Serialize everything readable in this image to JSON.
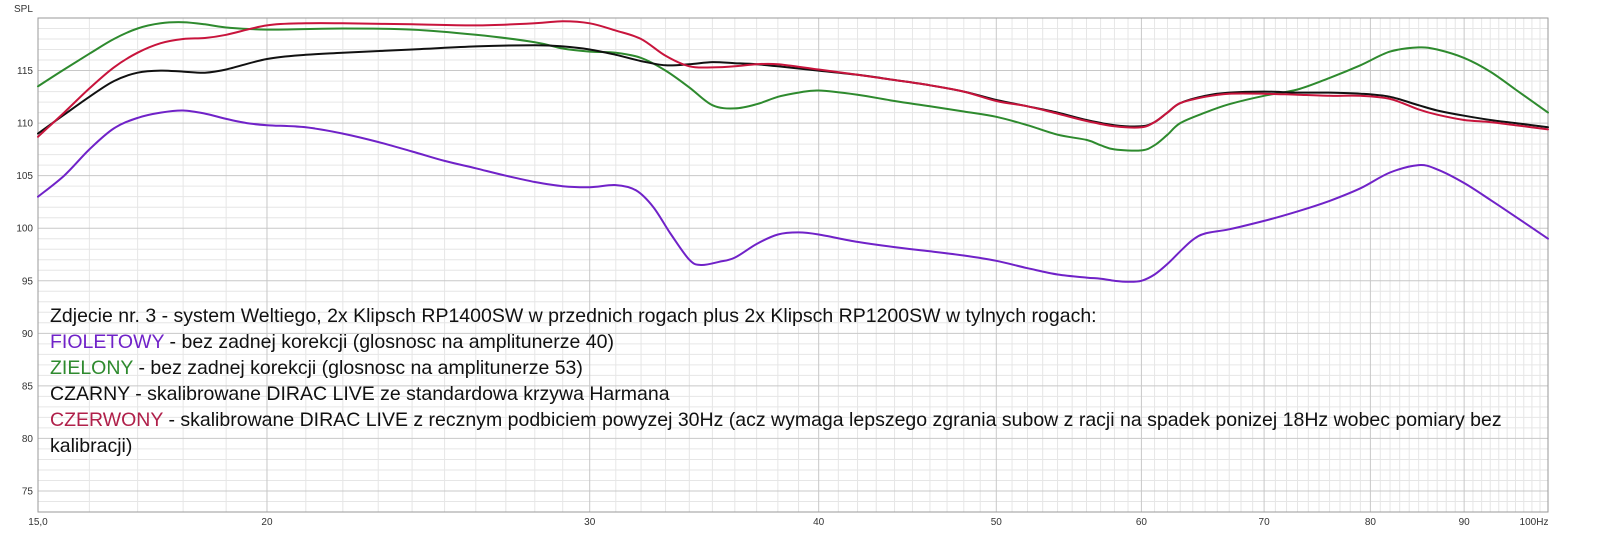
{
  "chart_data": {
    "type": "line",
    "ylabel": "SPL",
    "xlabel": "",
    "x_unit_label": "Hz",
    "x_scale": "log",
    "xlim": [
      15,
      100
    ],
    "ylim": [
      73,
      120
    ],
    "grid": true,
    "x_ticks": [
      {
        "value": 15,
        "label": "15,0"
      },
      {
        "value": 20,
        "label": "20"
      },
      {
        "value": 30,
        "label": "30"
      },
      {
        "value": 40,
        "label": "40"
      },
      {
        "value": 50,
        "label": "50"
      },
      {
        "value": 60,
        "label": "60"
      },
      {
        "value": 70,
        "label": "70"
      },
      {
        "value": 80,
        "label": "80"
      },
      {
        "value": 90,
        "label": "90"
      },
      {
        "value": 100,
        "label": "100"
      }
    ],
    "y_ticks": [
      {
        "value": 75,
        "label": "75"
      },
      {
        "value": 80,
        "label": "80"
      },
      {
        "value": 85,
        "label": "85"
      },
      {
        "value": 90,
        "label": "90"
      },
      {
        "value": 95,
        "label": "95"
      },
      {
        "value": 100,
        "label": "100"
      },
      {
        "value": 105,
        "label": "105"
      },
      {
        "value": 110,
        "label": "110"
      },
      {
        "value": 115,
        "label": "115"
      }
    ],
    "series": [
      {
        "key": "fioletowy",
        "color": "#7022c8",
        "points": [
          [
            15,
            103
          ],
          [
            15.5,
            105
          ],
          [
            16,
            107.5
          ],
          [
            16.5,
            109.5
          ],
          [
            17,
            110.5
          ],
          [
            17.5,
            111
          ],
          [
            18,
            111.2
          ],
          [
            18.5,
            110.9
          ],
          [
            19,
            110.4
          ],
          [
            19.5,
            110
          ],
          [
            20,
            109.8
          ],
          [
            21,
            109.6
          ],
          [
            22,
            109
          ],
          [
            23,
            108.2
          ],
          [
            24,
            107.3
          ],
          [
            25,
            106.4
          ],
          [
            26,
            105.7
          ],
          [
            27,
            105
          ],
          [
            28,
            104.4
          ],
          [
            29,
            104
          ],
          [
            30,
            103.9
          ],
          [
            31,
            104.1
          ],
          [
            31.8,
            103.6
          ],
          [
            32.5,
            102
          ],
          [
            33.2,
            99.5
          ],
          [
            34,
            97
          ],
          [
            34.5,
            96.5
          ],
          [
            35.3,
            96.8
          ],
          [
            36,
            97.2
          ],
          [
            37,
            98.5
          ],
          [
            38,
            99.4
          ],
          [
            39,
            99.6
          ],
          [
            40,
            99.4
          ],
          [
            42,
            98.7
          ],
          [
            44,
            98.2
          ],
          [
            46,
            97.8
          ],
          [
            48,
            97.4
          ],
          [
            50,
            96.9
          ],
          [
            52,
            96.2
          ],
          [
            54,
            95.6
          ],
          [
            56,
            95.3
          ],
          [
            57,
            95.2
          ],
          [
            58,
            95
          ],
          [
            59,
            94.9
          ],
          [
            60,
            95
          ],
          [
            61,
            95.6
          ],
          [
            62,
            96.6
          ],
          [
            63,
            97.8
          ],
          [
            64,
            98.9
          ],
          [
            65,
            99.5
          ],
          [
            67,
            99.9
          ],
          [
            70,
            100.7
          ],
          [
            73,
            101.6
          ],
          [
            76,
            102.6
          ],
          [
            79,
            103.8
          ],
          [
            82,
            105.3
          ],
          [
            85,
            106
          ],
          [
            87,
            105.6
          ],
          [
            90,
            104.3
          ],
          [
            93,
            102.7
          ],
          [
            96,
            101.1
          ],
          [
            100,
            99
          ]
        ]
      },
      {
        "key": "zielony",
        "color": "#2e8a2e",
        "points": [
          [
            15,
            113.5
          ],
          [
            15.5,
            115.1
          ],
          [
            16,
            116.6
          ],
          [
            16.5,
            118
          ],
          [
            17,
            119
          ],
          [
            17.5,
            119.5
          ],
          [
            18,
            119.6
          ],
          [
            18.5,
            119.4
          ],
          [
            19,
            119.1
          ],
          [
            20,
            118.9
          ],
          [
            22,
            119
          ],
          [
            24,
            118.9
          ],
          [
            26,
            118.4
          ],
          [
            28,
            117.7
          ],
          [
            29,
            117.1
          ],
          [
            30,
            116.8
          ],
          [
            31,
            116.7
          ],
          [
            32,
            116.2
          ],
          [
            33,
            115
          ],
          [
            34,
            113.4
          ],
          [
            35,
            111.7
          ],
          [
            36,
            111.4
          ],
          [
            37,
            111.8
          ],
          [
            38,
            112.5
          ],
          [
            39,
            112.9
          ],
          [
            40,
            113.1
          ],
          [
            42,
            112.7
          ],
          [
            44,
            112.1
          ],
          [
            46,
            111.6
          ],
          [
            48,
            111.1
          ],
          [
            50,
            110.6
          ],
          [
            52,
            109.8
          ],
          [
            54,
            108.9
          ],
          [
            56,
            108.4
          ],
          [
            57,
            107.9
          ],
          [
            58,
            107.5
          ],
          [
            60,
            107.4
          ],
          [
            61,
            107.9
          ],
          [
            62,
            108.9
          ],
          [
            63,
            110
          ],
          [
            65,
            111
          ],
          [
            67,
            111.8
          ],
          [
            70,
            112.6
          ],
          [
            73,
            113.2
          ],
          [
            76,
            114.3
          ],
          [
            79,
            115.5
          ],
          [
            82,
            116.8
          ],
          [
            85,
            117.2
          ],
          [
            87,
            117
          ],
          [
            90,
            116.2
          ],
          [
            93,
            114.9
          ],
          [
            96,
            113.2
          ],
          [
            100,
            111
          ]
        ]
      },
      {
        "key": "czarny",
        "color": "#111111",
        "points": [
          [
            15,
            109
          ],
          [
            15.5,
            110.8
          ],
          [
            16,
            112.5
          ],
          [
            16.5,
            114
          ],
          [
            17,
            114.8
          ],
          [
            17.5,
            115
          ],
          [
            18,
            114.9
          ],
          [
            18.5,
            114.8
          ],
          [
            19,
            115.1
          ],
          [
            20,
            116.1
          ],
          [
            21,
            116.5
          ],
          [
            22,
            116.7
          ],
          [
            24,
            117
          ],
          [
            26,
            117.3
          ],
          [
            28,
            117.4
          ],
          [
            29,
            117.3
          ],
          [
            30,
            117
          ],
          [
            31,
            116.5
          ],
          [
            32,
            115.9
          ],
          [
            33,
            115.5
          ],
          [
            34,
            115.6
          ],
          [
            35,
            115.8
          ],
          [
            36,
            115.7
          ],
          [
            37,
            115.6
          ],
          [
            38,
            115.4
          ],
          [
            40,
            115
          ],
          [
            42,
            114.6
          ],
          [
            44,
            114.1
          ],
          [
            46,
            113.6
          ],
          [
            48,
            113
          ],
          [
            50,
            112.2
          ],
          [
            52,
            111.6
          ],
          [
            54,
            111
          ],
          [
            56,
            110.3
          ],
          [
            58,
            109.8
          ],
          [
            60,
            109.7
          ],
          [
            61,
            110.1
          ],
          [
            62,
            111
          ],
          [
            63,
            111.9
          ],
          [
            65,
            112.6
          ],
          [
            67,
            112.9
          ],
          [
            70,
            113
          ],
          [
            73,
            112.9
          ],
          [
            76,
            112.9
          ],
          [
            79,
            112.8
          ],
          [
            82,
            112.5
          ],
          [
            85,
            111.7
          ],
          [
            87,
            111.2
          ],
          [
            90,
            110.7
          ],
          [
            93,
            110.3
          ],
          [
            96,
            110
          ],
          [
            100,
            109.6
          ]
        ]
      },
      {
        "key": "czerwony",
        "color": "#c8143c",
        "points": [
          [
            15,
            108.7
          ],
          [
            15.5,
            111
          ],
          [
            16,
            113.3
          ],
          [
            16.5,
            115.3
          ],
          [
            17,
            116.7
          ],
          [
            17.5,
            117.6
          ],
          [
            18,
            118
          ],
          [
            18.5,
            118.1
          ],
          [
            19,
            118.4
          ],
          [
            20,
            119.3
          ],
          [
            21,
            119.5
          ],
          [
            22,
            119.5
          ],
          [
            24,
            119.4
          ],
          [
            26,
            119.3
          ],
          [
            28,
            119.5
          ],
          [
            29,
            119.7
          ],
          [
            30,
            119.5
          ],
          [
            31,
            118.8
          ],
          [
            32,
            118
          ],
          [
            33,
            116.4
          ],
          [
            34,
            115.4
          ],
          [
            35,
            115.3
          ],
          [
            36,
            115.4
          ],
          [
            37,
            115.6
          ],
          [
            38,
            115.6
          ],
          [
            40,
            115.1
          ],
          [
            42,
            114.6
          ],
          [
            44,
            114.1
          ],
          [
            46,
            113.6
          ],
          [
            48,
            113
          ],
          [
            50,
            112.1
          ],
          [
            52,
            111.6
          ],
          [
            54,
            110.9
          ],
          [
            56,
            110.2
          ],
          [
            58,
            109.7
          ],
          [
            60,
            109.6
          ],
          [
            61,
            110.1
          ],
          [
            62,
            111
          ],
          [
            63,
            111.9
          ],
          [
            65,
            112.5
          ],
          [
            67,
            112.8
          ],
          [
            70,
            112.8
          ],
          [
            73,
            112.7
          ],
          [
            76,
            112.6
          ],
          [
            79,
            112.6
          ],
          [
            82,
            112.3
          ],
          [
            85,
            111.3
          ],
          [
            87,
            110.8
          ],
          [
            90,
            110.3
          ],
          [
            93,
            110.1
          ],
          [
            96,
            109.8
          ],
          [
            100,
            109.4
          ]
        ]
      }
    ]
  },
  "caption": {
    "title": "Zdjecie nr. 3 - system Weltiego, 2x Klipsch RP1400SW w przednich rogach plus 2x Klipsch RP1200SW w tylnych rogach:",
    "items": [
      {
        "name": "FIOLETOWY",
        "name_color": "#7022c8",
        "text": " - bez zadnej korekcji (glosnosc na amplitunerze 40)"
      },
      {
        "name": "ZIELONY",
        "name_color": "#2e8a2e",
        "text": " - bez zadnej korekcji (glosnosc na amplitunerze 53)"
      },
      {
        "name": "CZARNY",
        "name_color": "#111111",
        "text": " - skalibrowane DIRAC LIVE ze standardowa krzywa Harmana"
      },
      {
        "name": "CZERWONY",
        "name_color": "#b0204a",
        "text": " - skalibrowane DIRAC LIVE z recznym podbiciem powyzej 30Hz (acz wymaga lepszego zgrania subow z racji na spadek ponizej 18Hz wobec pomiary bez kalibracji)"
      }
    ]
  }
}
